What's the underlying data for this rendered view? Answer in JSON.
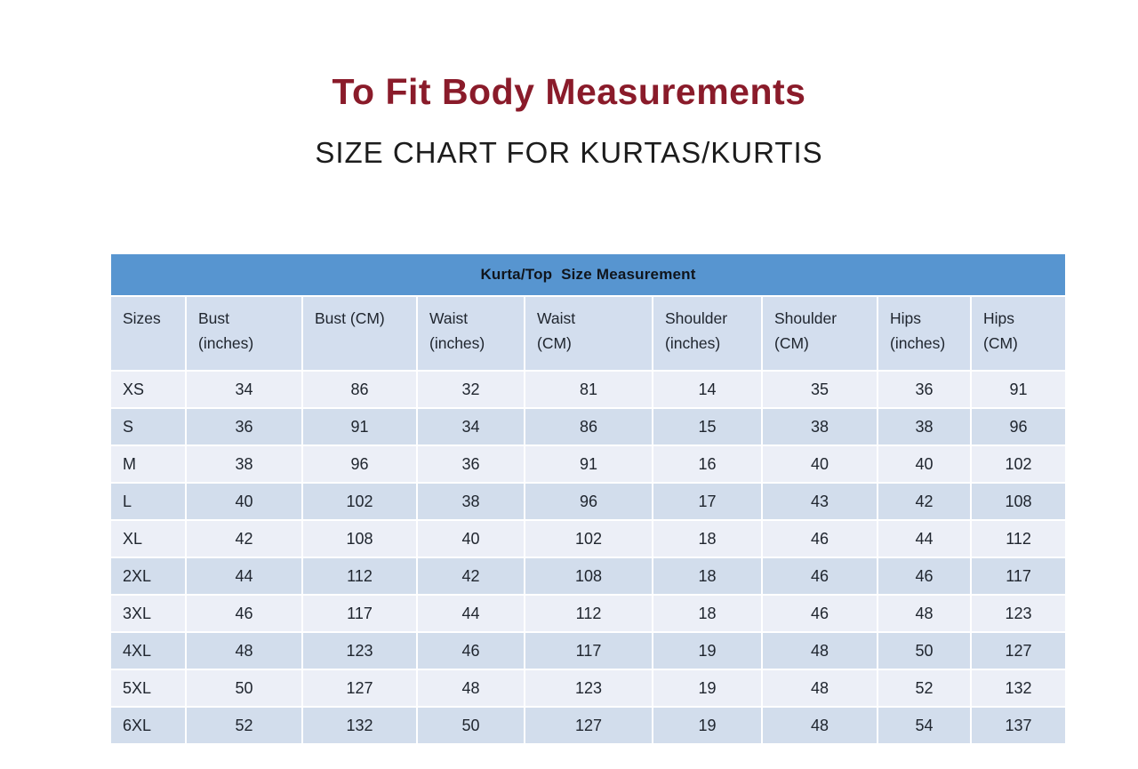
{
  "page": {
    "title": "To Fit Body Measurements",
    "subtitle": "SIZE CHART FOR KURTAS/KURTIS"
  },
  "chart_data": {
    "type": "table",
    "title": "Kurta/Top  Size Measurement",
    "columns": [
      "Sizes",
      "Bust\n(inches)",
      "Bust (CM)",
      "Waist\n(inches)",
      "Waist\n(CM)",
      "Shoulder\n(inches)",
      "Shoulder\n(CM)",
      "Hips\n(inches)",
      "Hips\n(CM)"
    ],
    "rows": [
      [
        "XS",
        34,
        86,
        32,
        81,
        14,
        35,
        36,
        91
      ],
      [
        "S",
        36,
        91,
        34,
        86,
        15,
        38,
        38,
        96
      ],
      [
        "M",
        38,
        96,
        36,
        91,
        16,
        40,
        40,
        102
      ],
      [
        "L",
        40,
        102,
        38,
        96,
        17,
        43,
        42,
        108
      ],
      [
        "XL",
        42,
        108,
        40,
        102,
        18,
        46,
        44,
        112
      ],
      [
        "2XL",
        44,
        112,
        42,
        108,
        18,
        46,
        46,
        117
      ],
      [
        "3XL",
        46,
        117,
        44,
        112,
        18,
        46,
        48,
        123
      ],
      [
        "4XL",
        48,
        123,
        46,
        117,
        19,
        48,
        50,
        127
      ],
      [
        "5XL",
        50,
        127,
        48,
        123,
        19,
        48,
        52,
        132
      ],
      [
        "6XL",
        52,
        132,
        50,
        127,
        19,
        48,
        54,
        137
      ]
    ],
    "layout": {
      "grid": "white 2px gridlines",
      "row_striping": [
        "light",
        "dark"
      ],
      "header_text_align": "left",
      "data_text_align": "center"
    }
  },
  "colors": {
    "title": "#8A1B2A",
    "banner_bg": "#5795D0",
    "banner_text": "#10151C",
    "header_row_bg": "#D3DEEE",
    "row_light_bg": "#ECEFF7",
    "row_dark_bg": "#D2DDEC",
    "cell_text": "#20262F"
  }
}
